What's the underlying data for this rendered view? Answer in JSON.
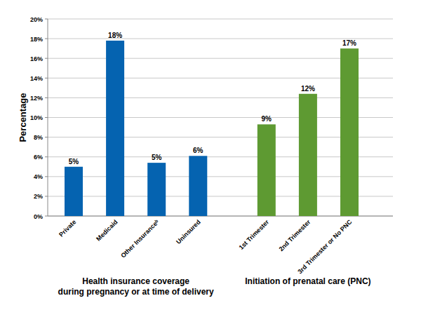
{
  "chart_data": {
    "type": "bar",
    "y_label": "Percentage",
    "categories": [
      "Private",
      "Medicaid",
      "Other Insuranceᵇ",
      "Uninsured",
      "1st Trimester",
      "2nd Trimester",
      "3rd Trimester or No PNC"
    ],
    "series": [
      {
        "name": "Health insurance coverage\nduring pregnancy or at time of delivery",
        "color": "#0563b0",
        "values": [
          5,
          17.8,
          5.4,
          6.1,
          null,
          null,
          null
        ],
        "value_labels": [
          "5%",
          "18%",
          "5%",
          "6%",
          null,
          null,
          null
        ]
      },
      {
        "name": "Initiation of prenatal care (PNC)",
        "color": "#5e9a32",
        "values": [
          null,
          null,
          null,
          null,
          9.3,
          12.4,
          17
        ],
        "value_labels": [
          null,
          null,
          null,
          null,
          "9%",
          "12%",
          "17%"
        ]
      }
    ],
    "ylim": [
      0,
      20
    ],
    "yticks": [
      {
        "value": 0,
        "label": "0%"
      },
      {
        "value": 2,
        "label": "2%"
      },
      {
        "value": 4,
        "label": "4%"
      },
      {
        "value": 6,
        "label": "6%"
      },
      {
        "value": 8,
        "label": "8%"
      },
      {
        "value": 10,
        "label": "10%"
      },
      {
        "value": 12,
        "label": "12%"
      },
      {
        "value": 14,
        "label": "14%"
      },
      {
        "value": 16,
        "label": "16%"
      },
      {
        "value": 18,
        "label": "18%"
      },
      {
        "value": 20,
        "label": "20%"
      }
    ],
    "grid": true,
    "data_labels": true
  }
}
